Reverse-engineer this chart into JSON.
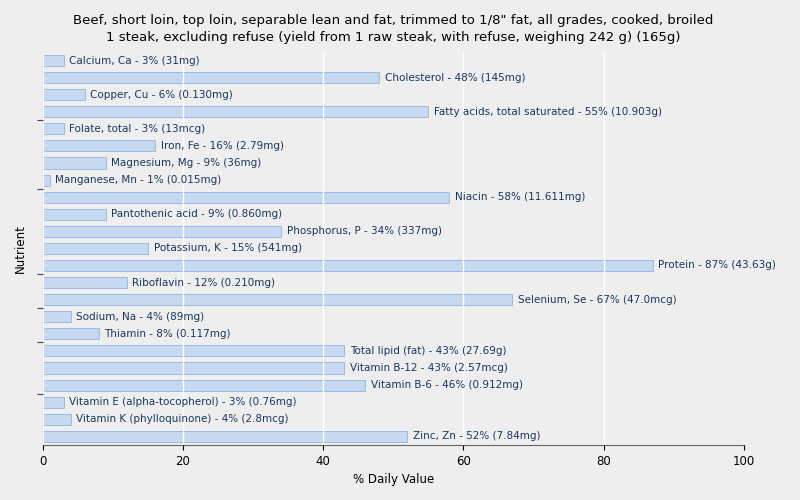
{
  "title": "Beef, short loin, top loin, separable lean and fat, trimmed to 1/8\" fat, all grades, cooked, broiled\n1 steak, excluding refuse (yield from 1 raw steak, with refuse, weighing 242 g) (165g)",
  "xlabel": "% Daily Value",
  "ylabel": "Nutrient",
  "nutrients": [
    "Calcium, Ca - 3% (31mg)",
    "Cholesterol - 48% (145mg)",
    "Copper, Cu - 6% (0.130mg)",
    "Fatty acids, total saturated - 55% (10.903g)",
    "Folate, total - 3% (13mcg)",
    "Iron, Fe - 16% (2.79mg)",
    "Magnesium, Mg - 9% (36mg)",
    "Manganese, Mn - 1% (0.015mg)",
    "Niacin - 58% (11.611mg)",
    "Pantothenic acid - 9% (0.860mg)",
    "Phosphorus, P - 34% (337mg)",
    "Potassium, K - 15% (541mg)",
    "Protein - 87% (43.63g)",
    "Riboflavin - 12% (0.210mg)",
    "Selenium, Se - 67% (47.0mcg)",
    "Sodium, Na - 4% (89mg)",
    "Thiamin - 8% (0.117mg)",
    "Total lipid (fat) - 43% (27.69g)",
    "Vitamin B-12 - 43% (2.57mcg)",
    "Vitamin B-6 - 46% (0.912mg)",
    "Vitamin E (alpha-tocopherol) - 3% (0.76mg)",
    "Vitamin K (phylloquinone) - 4% (2.8mcg)",
    "Zinc, Zn - 52% (7.84mg)"
  ],
  "values": [
    3,
    48,
    6,
    55,
    3,
    16,
    9,
    1,
    58,
    9,
    34,
    15,
    87,
    12,
    67,
    4,
    8,
    43,
    43,
    46,
    3,
    4,
    52
  ],
  "bar_color": "#c6d9f1",
  "bar_edge_color": "#8db4e2",
  "text_color": "#17375e",
  "background_color": "#eeeeee",
  "xlim": [
    0,
    100
  ],
  "title_fontsize": 9.5,
  "label_fontsize": 7.5,
  "tick_fontsize": 8.5
}
